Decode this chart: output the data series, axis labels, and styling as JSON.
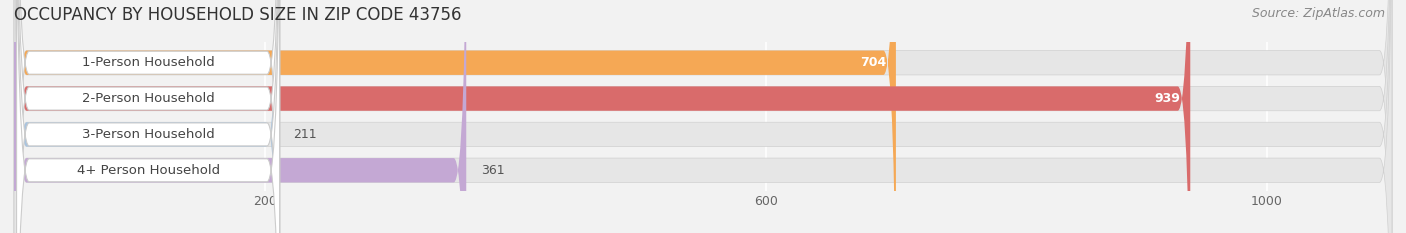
{
  "title": "OCCUPANCY BY HOUSEHOLD SIZE IN ZIP CODE 43756",
  "source": "Source: ZipAtlas.com",
  "categories": [
    "1-Person Household",
    "2-Person Household",
    "3-Person Household",
    "4+ Person Household"
  ],
  "values": [
    704,
    939,
    211,
    361
  ],
  "bar_colors": [
    "#f5a855",
    "#d96b6b",
    "#a8c4e0",
    "#c4a8d4"
  ],
  "background_color": "#f2f2f2",
  "bar_bg_color": "#e6e6e6",
  "label_box_color": "#ffffff",
  "xlim": [
    0,
    1100
  ],
  "xticks": [
    200,
    600,
    1000
  ],
  "title_fontsize": 12,
  "source_fontsize": 9,
  "label_fontsize": 9.5,
  "value_fontsize": 9,
  "figsize": [
    14.06,
    2.33
  ],
  "dpi": 100
}
